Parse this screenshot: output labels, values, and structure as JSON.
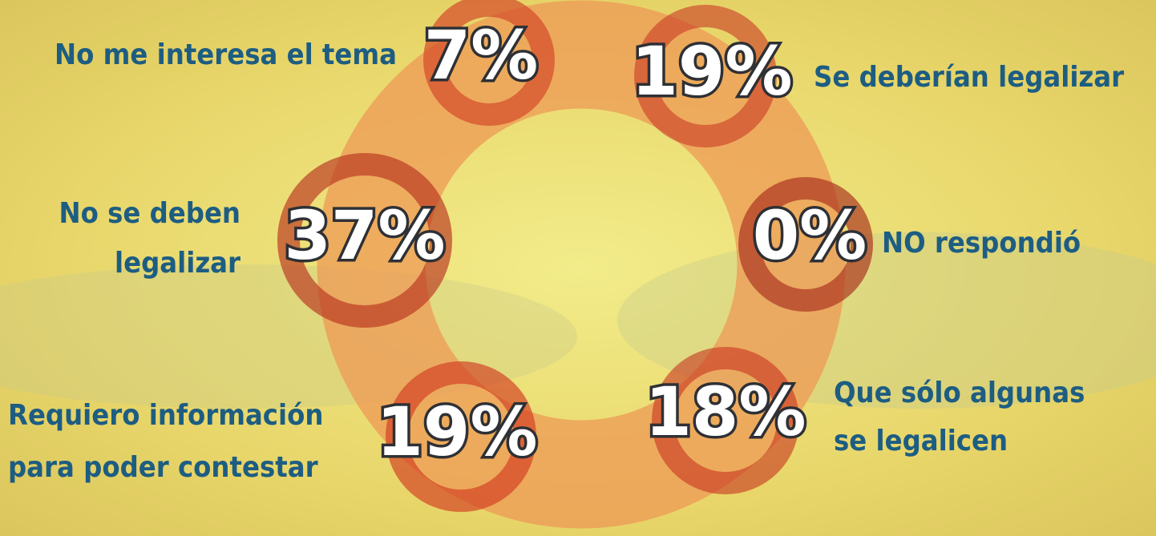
{
  "items": [
    {
      "value": "7%",
      "label": [
        "No me interesa el tema"
      ]
    },
    {
      "value": "19%",
      "label": [
        "Se deberían legalizar"
      ]
    },
    {
      "value": "37%",
      "label": [
        "No se deben",
        "legalizar"
      ]
    },
    {
      "value": "0%",
      "label": [
        "NO respondió"
      ]
    },
    {
      "value": "19%",
      "label": [
        "Requiero información",
        "para poder contestar"
      ]
    },
    {
      "value": "18%",
      "label": [
        "Que sólo algunas",
        "se legalicen"
      ]
    }
  ]
}
